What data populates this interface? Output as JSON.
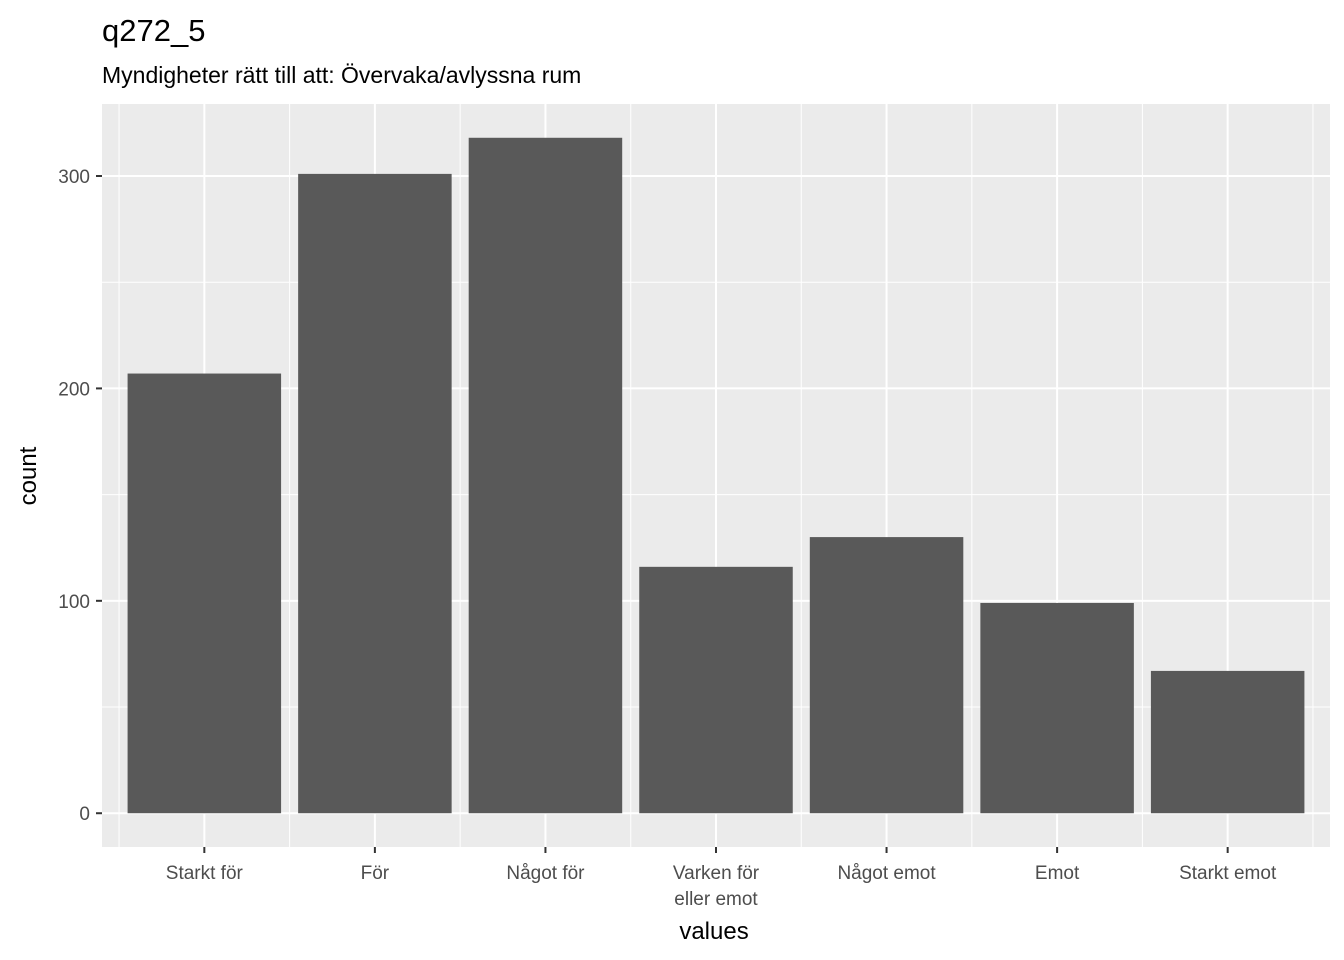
{
  "chart_data": {
    "type": "bar",
    "title": "q272_5",
    "subtitle": "Myndigheter rätt till att: Övervaka/avlyssna rum",
    "xlabel": "values",
    "ylabel": "count",
    "categories": [
      [
        "Starkt för"
      ],
      [
        "För"
      ],
      [
        "Något för"
      ],
      [
        "Varken för",
        "eller emot"
      ],
      [
        "Något emot"
      ],
      [
        "Emot"
      ],
      [
        "Starkt emot"
      ]
    ],
    "values": [
      207,
      301,
      318,
      116,
      130,
      99,
      67
    ],
    "ylim": [
      -15.9,
      333.9
    ],
    "yticks": [
      0,
      100,
      200,
      300
    ],
    "grid": true,
    "colors": {
      "panel": "#ebebeb",
      "grid_major": "#ffffff",
      "bar": "#595959",
      "tick": "#333333",
      "tick_text": "#4d4d4d"
    }
  }
}
